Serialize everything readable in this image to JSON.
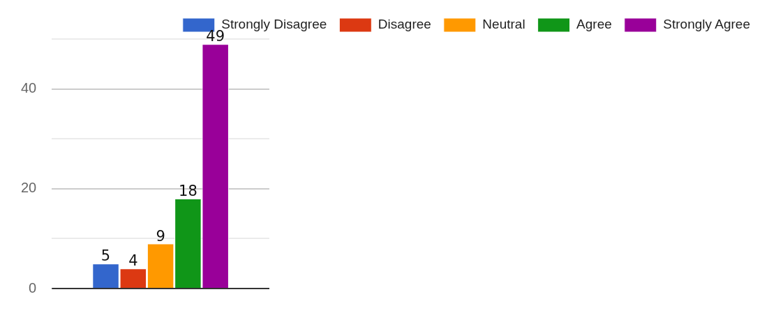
{
  "chart_data": {
    "type": "bar",
    "categories": [
      null
    ],
    "series": [
      {
        "name": "Strongly Disagree",
        "color": "#3366cc",
        "values": [
          5
        ]
      },
      {
        "name": "Disagree",
        "color": "#dc3912",
        "values": [
          4
        ]
      },
      {
        "name": "Neutral",
        "color": "#ff9900",
        "values": [
          9
        ]
      },
      {
        "name": "Agree",
        "color": "#109618",
        "values": [
          18
        ]
      },
      {
        "name": "Strongly Agree",
        "color": "#990099",
        "values": [
          49
        ]
      }
    ],
    "ylim": [
      0,
      50
    ],
    "yticks": [
      0,
      {
        "value": 10,
        "label": null
      },
      20,
      {
        "value": 30,
        "label": null
      },
      40,
      {
        "value": 50,
        "label": null
      }
    ],
    "grid": "y",
    "legend": "top",
    "data_labels": true
  }
}
